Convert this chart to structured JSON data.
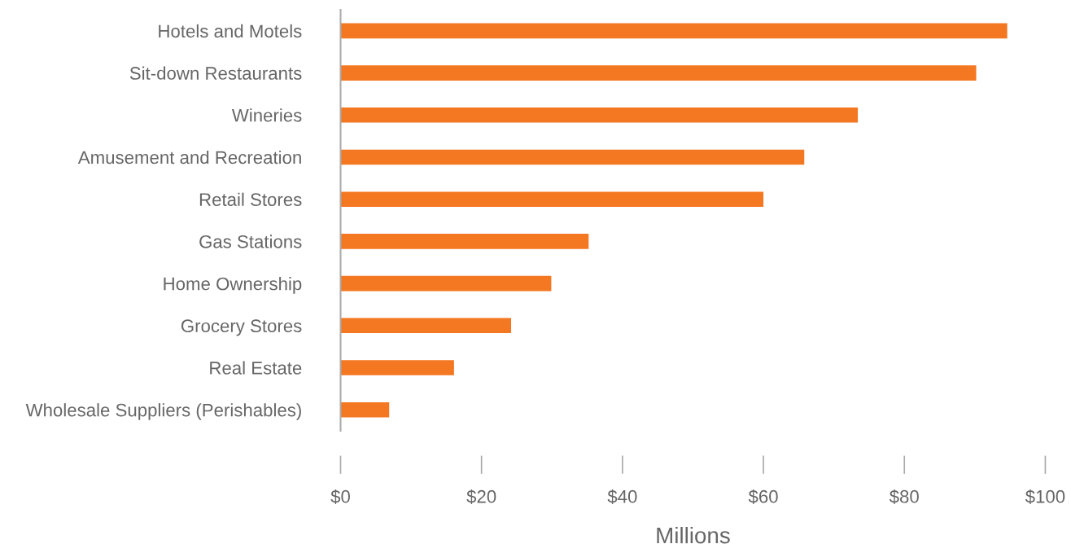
{
  "chart_data": {
    "type": "bar",
    "orientation": "horizontal",
    "xlabel": "Millions",
    "categories": [
      "Hotels and Motels",
      "Sit-down Restaurants",
      "Wineries",
      "Amusement and Recreation",
      "Retail Stores",
      "Gas Stations",
      "Home Ownership",
      "Grocery Stores",
      "Real Estate",
      "Wholesale Suppliers (Perishables)"
    ],
    "values": [
      94.6,
      90.2,
      73.4,
      65.8,
      60.0,
      35.2,
      29.9,
      24.2,
      16.1,
      6.9
    ],
    "color": "#f47721",
    "xlim": [
      0,
      100
    ],
    "xticks": [
      {
        "value": 0,
        "label": "$0"
      },
      {
        "value": 20,
        "label": "$20"
      },
      {
        "value": 40,
        "label": "$40"
      },
      {
        "value": 60,
        "label": "$60"
      },
      {
        "value": 80,
        "label": "$80"
      },
      {
        "value": 100,
        "label": "$100"
      }
    ],
    "grid": false,
    "legend": false
  }
}
